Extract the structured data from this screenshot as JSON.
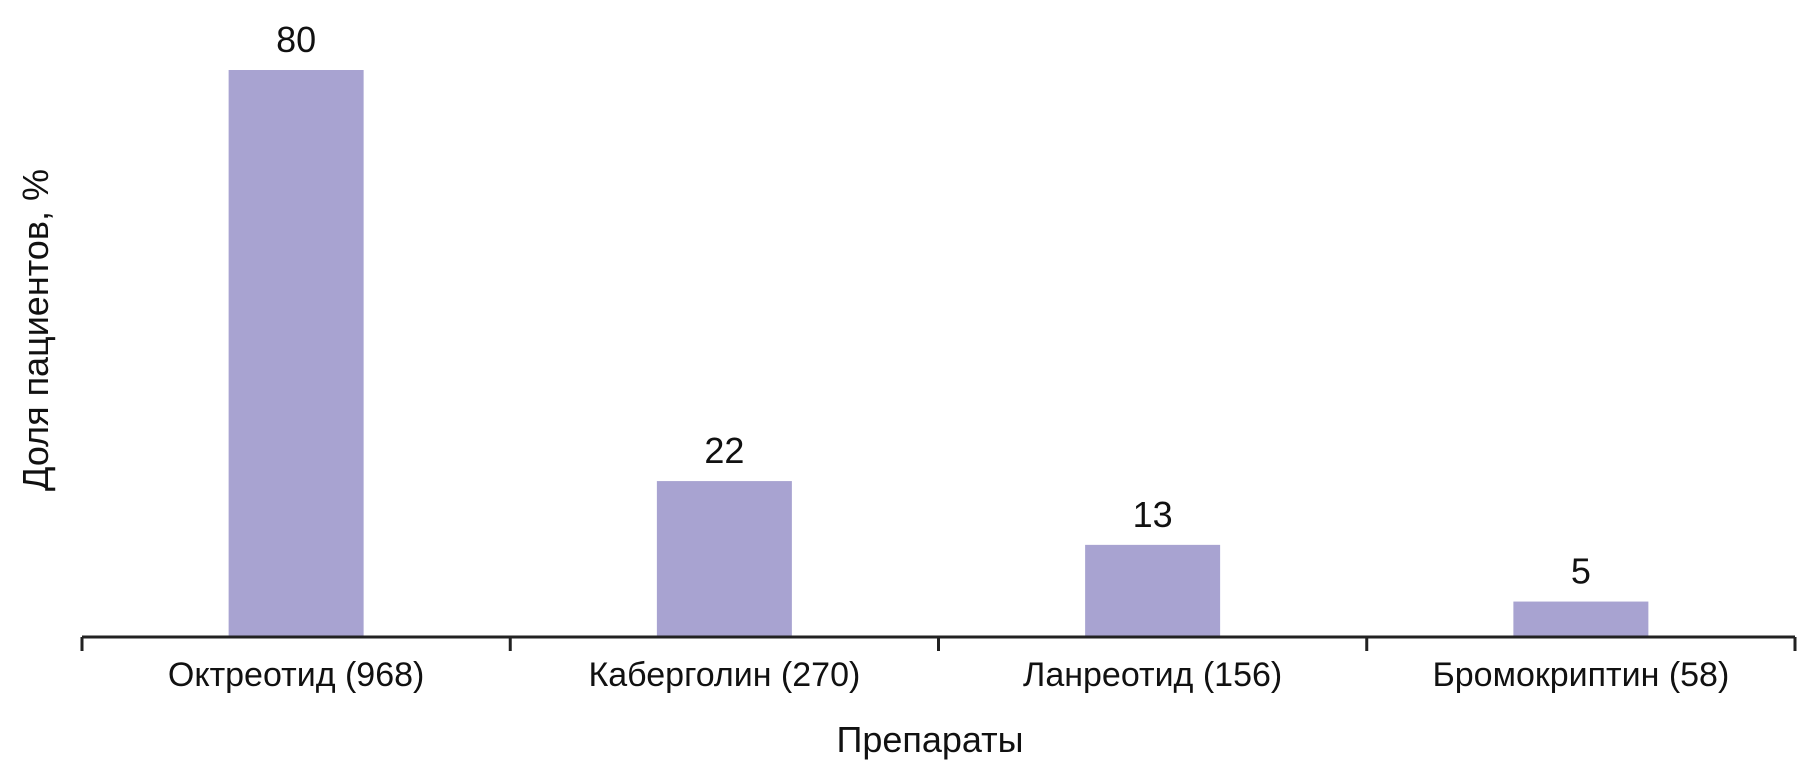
{
  "chart_data": {
    "type": "bar",
    "categories": [
      "Октреотид (968)",
      "Каберголин (270)",
      "Ланреотид (156)",
      "Бромокриптин (58)"
    ],
    "values": [
      80,
      22,
      13,
      5
    ],
    "data_labels": [
      "80",
      "22",
      "13",
      "5"
    ],
    "title": "",
    "xlabel": "Препараты",
    "ylabel": "Доля пациентов, %",
    "ylim": [
      0,
      85
    ],
    "grid": false,
    "y_axis_visible": false,
    "bar_color": "#a8a3d1",
    "axis_color": "#222222"
  }
}
